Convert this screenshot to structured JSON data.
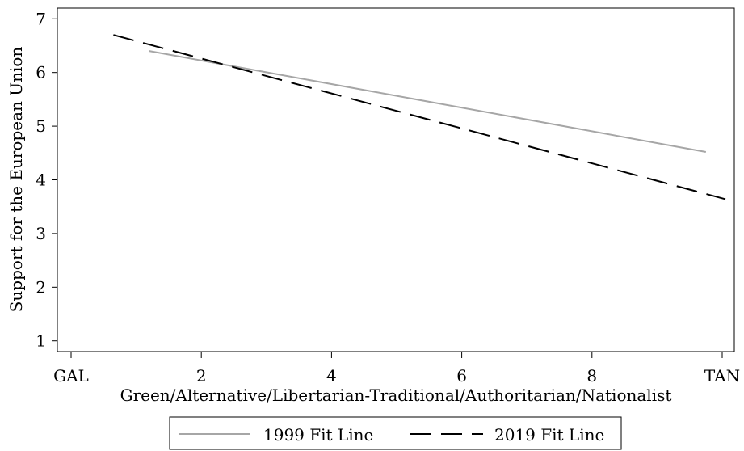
{
  "chart_data": {
    "type": "line",
    "title": "",
    "xlabel": "Green/Alternative/Libertarian-Traditional/Authoritarian/Nationalist",
    "ylabel": "Support for the European Union",
    "xlim": [
      0,
      10
    ],
    "ylim": [
      0.8,
      7.2
    ],
    "x_ticks": [
      {
        "value": 0,
        "label": "GAL"
      },
      {
        "value": 2,
        "label": "2"
      },
      {
        "value": 4,
        "label": "4"
      },
      {
        "value": 6,
        "label": "6"
      },
      {
        "value": 8,
        "label": "8"
      },
      {
        "value": 10,
        "label": "TAN"
      }
    ],
    "y_ticks": [
      {
        "value": 1,
        "label": "1"
      },
      {
        "value": 2,
        "label": "2"
      },
      {
        "value": 3,
        "label": "3"
      },
      {
        "value": 4,
        "label": "4"
      },
      {
        "value": 5,
        "label": "5"
      },
      {
        "value": 6,
        "label": "6"
      },
      {
        "value": 7,
        "label": "7"
      }
    ],
    "grid": false,
    "legend_position": "bottom",
    "series": [
      {
        "name": "1999 Fit Line",
        "color": "#a6a6a6",
        "style": "solid",
        "points": [
          {
            "x": 1.2,
            "y": 6.4
          },
          {
            "x": 9.75,
            "y": 4.52
          }
        ]
      },
      {
        "name": "2019 Fit Line",
        "color": "#000000",
        "style": "dashed",
        "points": [
          {
            "x": 0.65,
            "y": 6.7
          },
          {
            "x": 10.05,
            "y": 3.64
          }
        ]
      }
    ]
  }
}
